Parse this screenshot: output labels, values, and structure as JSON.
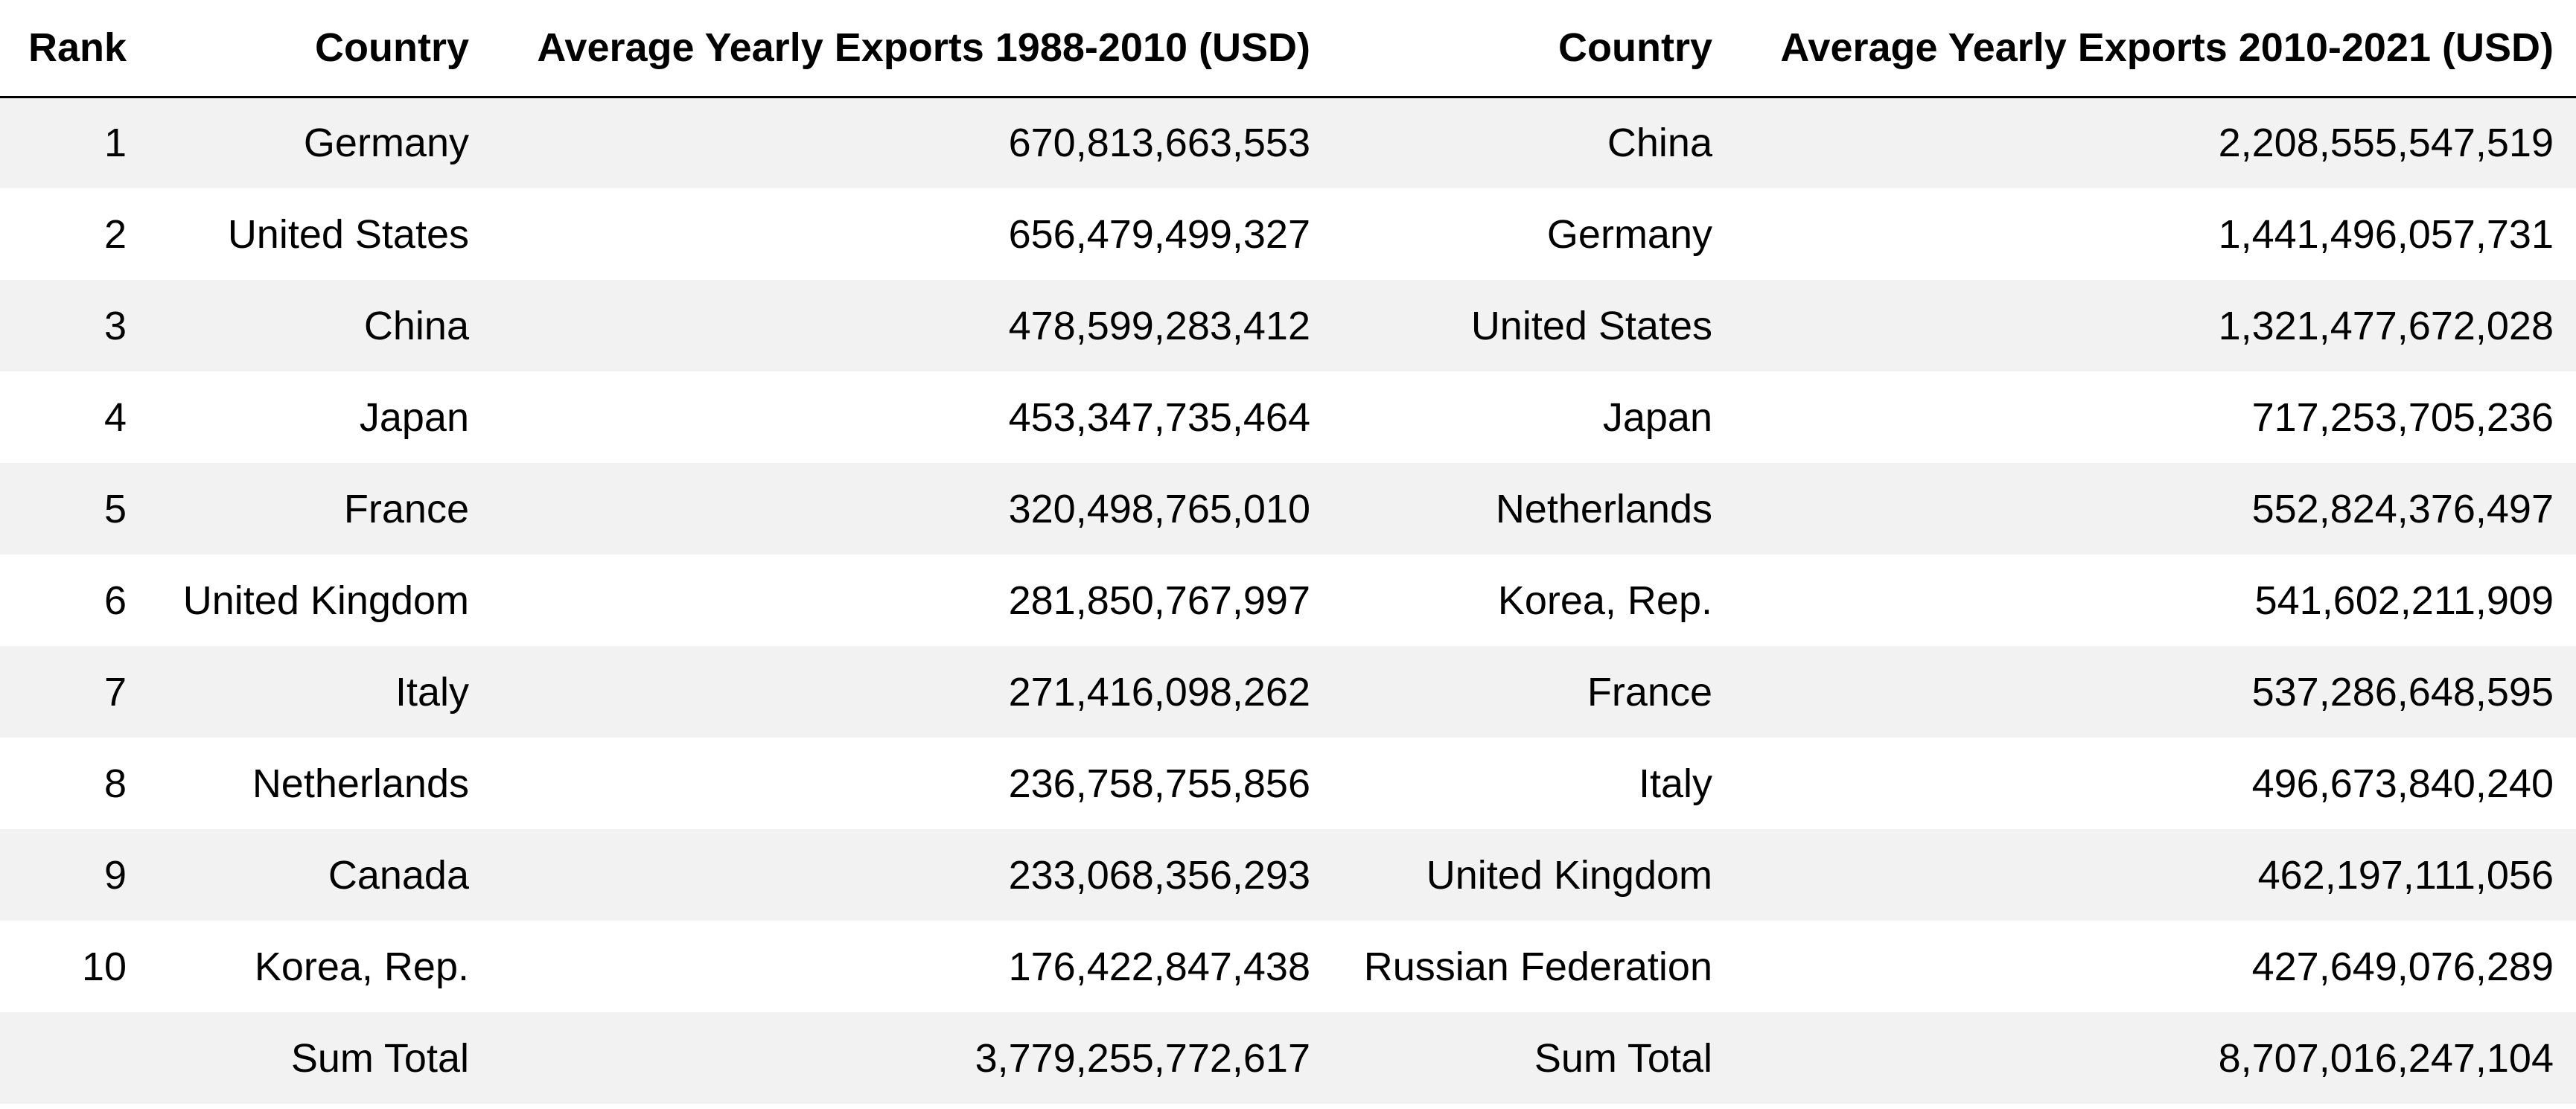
{
  "table": {
    "headers": [
      "Rank",
      "Country",
      "Average Yearly Exports 1988-2010 (USD)",
      "Country",
      "Average Yearly Exports 2010-2021 (USD)"
    ],
    "rows": [
      [
        "1",
        "Germany",
        "670,813,663,553",
        "China",
        "2,208,555,547,519"
      ],
      [
        "2",
        "United States",
        "656,479,499,327",
        "Germany",
        "1,441,496,057,731"
      ],
      [
        "3",
        "China",
        "478,599,283,412",
        "United States",
        "1,321,477,672,028"
      ],
      [
        "4",
        "Japan",
        "453,347,735,464",
        "Japan",
        "717,253,705,236"
      ],
      [
        "5",
        "France",
        "320,498,765,010",
        "Netherlands",
        "552,824,376,497"
      ],
      [
        "6",
        "United Kingdom",
        "281,850,767,997",
        "Korea, Rep.",
        "541,602,211,909"
      ],
      [
        "7",
        "Italy",
        "271,416,098,262",
        "France",
        "537,286,648,595"
      ],
      [
        "8",
        "Netherlands",
        "236,758,755,856",
        "Italy",
        "496,673,840,240"
      ],
      [
        "9",
        "Canada",
        "233,068,356,293",
        "United Kingdom",
        "462,197,111,056"
      ],
      [
        "10",
        "Korea, Rep.",
        "176,422,847,438",
        "Russian Federation",
        "427,649,076,289"
      ],
      [
        "",
        "Sum Total",
        "3,779,255,772,617",
        "Sum Total",
        "8,707,016,247,104"
      ]
    ]
  }
}
